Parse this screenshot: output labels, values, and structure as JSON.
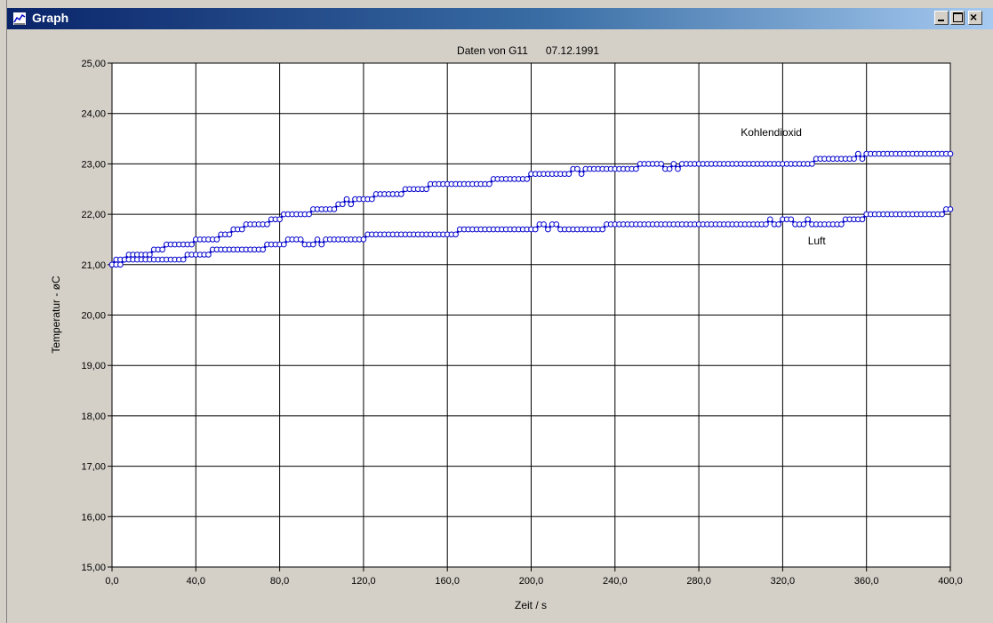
{
  "window": {
    "title": "Graph",
    "min_label": "_",
    "max_label": "□",
    "close_label": "×"
  },
  "chart_data": {
    "type": "scatter",
    "title": "Daten von G11      07.12.1991",
    "xlabel": "Zeit / s",
    "ylabel": "Temperatur - øC",
    "xlim": [
      0,
      400
    ],
    "ylim": [
      15,
      25
    ],
    "grid": true,
    "xticks": [
      0,
      40,
      80,
      120,
      160,
      200,
      240,
      280,
      320,
      360,
      400
    ],
    "xtick_labels": [
      "0,0",
      "40,0",
      "80,0",
      "120,0",
      "160,0",
      "200,0",
      "240,0",
      "280,0",
      "320,0",
      "360,0",
      "400,0"
    ],
    "yticks": [
      15,
      16,
      17,
      18,
      19,
      20,
      21,
      22,
      23,
      24,
      25
    ],
    "ytick_labels": [
      "15,00",
      "16,00",
      "17,00",
      "18,00",
      "19,00",
      "20,00",
      "21,00",
      "22,00",
      "23,00",
      "24,00",
      "25,00"
    ],
    "line_color": "#0000cc",
    "marker_color": "#ffffff",
    "sample_interval_s": 2,
    "series": [
      {
        "name": "Kohlendioxid",
        "label_at": [
          300,
          23.55
        ],
        "step_x": [
          0,
          2,
          8,
          14,
          20,
          26,
          32,
          40,
          46,
          52,
          58,
          64,
          70,
          76,
          82,
          88,
          96,
          102,
          108,
          114,
          120,
          126,
          132,
          140,
          146,
          152,
          158,
          164,
          170,
          182,
          188,
          200,
          210,
          220,
          226,
          232,
          242,
          252,
          262,
          272,
          300,
          336,
          352,
          360,
          370,
          400
        ],
        "step_y": [
          21.0,
          21.1,
          21.2,
          21.2,
          21.3,
          21.4,
          21.4,
          21.5,
          21.5,
          21.6,
          21.7,
          21.8,
          21.8,
          21.9,
          22.0,
          22.0,
          22.1,
          22.1,
          22.2,
          22.3,
          22.3,
          22.4,
          22.4,
          22.5,
          22.5,
          22.6,
          22.6,
          22.6,
          22.6,
          22.7,
          22.7,
          22.8,
          22.8,
          22.9,
          22.9,
          22.9,
          22.9,
          23.0,
          23.0,
          23.0,
          23.0,
          23.1,
          23.1,
          23.2,
          23.2,
          23.2
        ],
        "bumps": [
          [
            100,
            22.1
          ],
          [
            112,
            22.3
          ],
          [
            114,
            22.2
          ],
          [
            222,
            22.9
          ],
          [
            224,
            22.8
          ],
          [
            256,
            23.0
          ],
          [
            264,
            22.9
          ],
          [
            266,
            22.9
          ],
          [
            270,
            22.9
          ],
          [
            356,
            23.2
          ],
          [
            358,
            23.1
          ],
          [
            360,
            23.2
          ],
          [
            400,
            23.2
          ]
        ]
      },
      {
        "name": "Luft",
        "label_at": [
          332,
          21.4
        ],
        "step_x": [
          0,
          6,
          12,
          24,
          36,
          42,
          48,
          54,
          60,
          66,
          74,
          80,
          84,
          92,
          98,
          104,
          112,
          122,
          130,
          140,
          150,
          162,
          166,
          176,
          182,
          192,
          204,
          216,
          226,
          236,
          246,
          260,
          300,
          320,
          328,
          342,
          350,
          360,
          376,
          390,
          400
        ],
        "step_y": [
          21.0,
          21.1,
          21.1,
          21.1,
          21.2,
          21.2,
          21.3,
          21.3,
          21.3,
          21.3,
          21.4,
          21.4,
          21.5,
          21.4,
          21.5,
          21.5,
          21.5,
          21.6,
          21.6,
          21.6,
          21.6,
          21.6,
          21.7,
          21.7,
          21.7,
          21.7,
          21.8,
          21.7,
          21.7,
          21.8,
          21.8,
          21.8,
          21.8,
          21.9,
          21.8,
          21.8,
          21.9,
          22.0,
          22.0,
          22.0,
          22.1
        ],
        "bumps": [
          [
            88,
            21.5
          ],
          [
            94,
            21.4
          ],
          [
            100,
            21.4
          ],
          [
            206,
            21.8
          ],
          [
            208,
            21.7
          ],
          [
            212,
            21.8
          ],
          [
            214,
            21.7
          ],
          [
            314,
            21.9
          ],
          [
            318,
            21.8
          ],
          [
            324,
            21.9
          ],
          [
            326,
            21.8
          ],
          [
            332,
            21.9
          ],
          [
            334,
            21.8
          ],
          [
            398,
            22.1
          ]
        ]
      }
    ]
  }
}
